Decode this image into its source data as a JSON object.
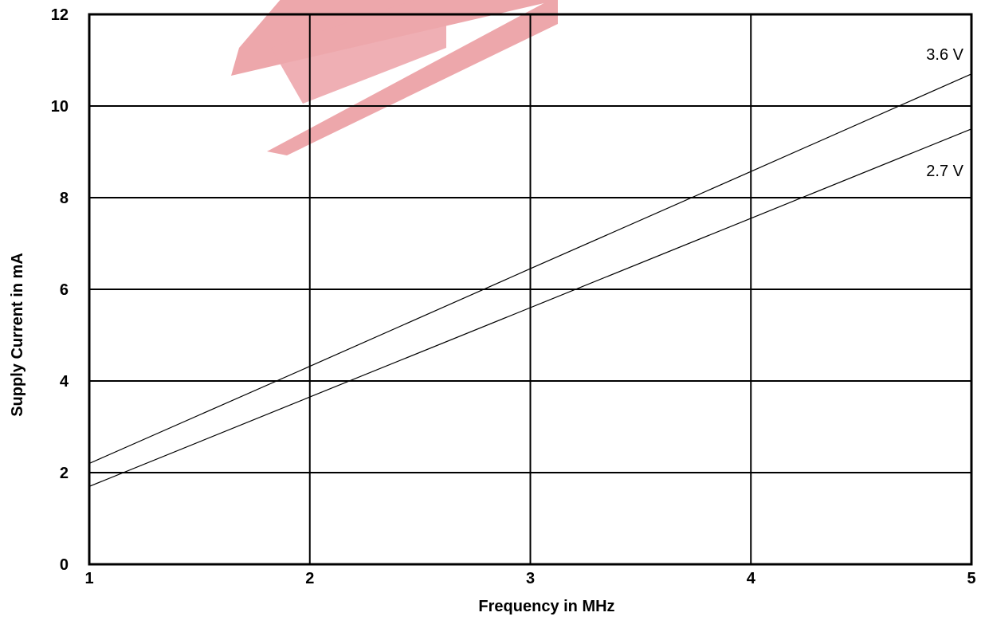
{
  "chart_data": {
    "type": "line",
    "title": "",
    "xlabel": "Frequency in MHz",
    "ylabel": "Supply Current in mA",
    "xlim": [
      1,
      5
    ],
    "ylim": [
      0,
      12
    ],
    "x_ticks": [
      "1",
      "2",
      "3",
      "4",
      "5"
    ],
    "y_ticks": [
      "0",
      "2",
      "4",
      "6",
      "8",
      "10",
      "12"
    ],
    "grid": true,
    "series": [
      {
        "name": "3.6 V",
        "x": [
          1,
          2,
          3,
          4,
          5
        ],
        "y": [
          2.2,
          4.32,
          6.45,
          8.57,
          10.7
        ]
      },
      {
        "name": "2.7 V",
        "x": [
          1,
          2,
          3,
          4,
          5
        ],
        "y": [
          1.7,
          3.65,
          5.6,
          7.55,
          9.5
        ]
      }
    ]
  },
  "watermark": {
    "color": "#e88a90"
  }
}
